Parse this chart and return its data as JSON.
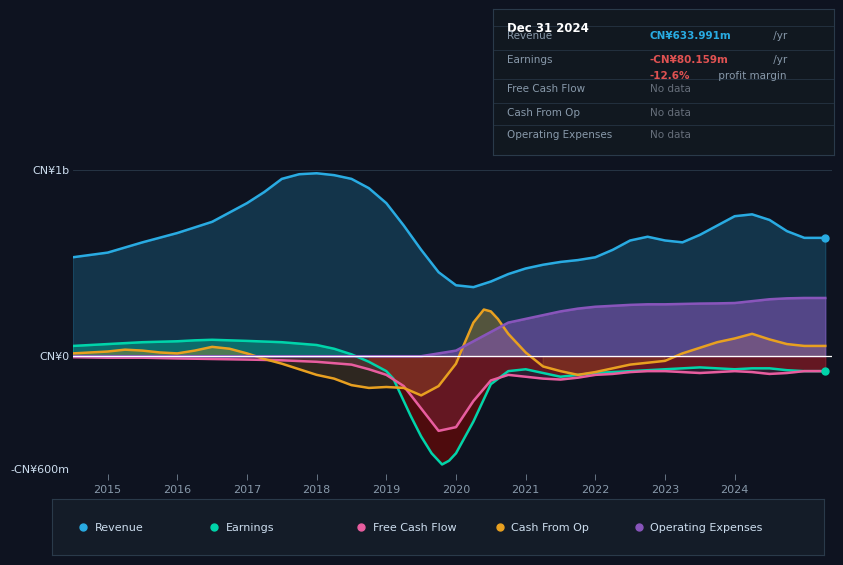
{
  "bg_color": "#0e1320",
  "plot_bg_color": "#0e1320",
  "title_box_bg": "#111927",
  "title_box_border": "#2a3a4a",
  "title_box": {
    "date": "Dec 31 2024",
    "rows": [
      {
        "label": "Revenue",
        "value": "CN¥633.991m",
        "value_suffix": " /yr",
        "value_color": "#29abe2",
        "extra": null
      },
      {
        "label": "Earnings",
        "value": "-CN¥80.159m",
        "value_suffix": " /yr",
        "value_color": "#e05252",
        "extra": "-12.6%",
        "extra_suffix": " profit margin",
        "extra_color": "#e05252"
      },
      {
        "label": "Free Cash Flow",
        "value": "No data",
        "value_color": "#666e7a",
        "extra": null
      },
      {
        "label": "Cash From Op",
        "value": "No data",
        "value_color": "#666e7a",
        "extra": null
      },
      {
        "label": "Operating Expenses",
        "value": "No data",
        "value_color": "#666e7a",
        "extra": null
      }
    ]
  },
  "ylabel_top": "CN¥1b",
  "ylabel_zero": "CN¥0",
  "ylabel_bottom": "-CN¥600m",
  "ylim": [
    -630,
    1050
  ],
  "xlim": [
    2014.5,
    2025.4
  ],
  "xticks": [
    2015,
    2016,
    2017,
    2018,
    2019,
    2020,
    2021,
    2022,
    2023,
    2024
  ],
  "colors": {
    "revenue": "#29abe2",
    "earnings": "#00d4aa",
    "free_cash_flow": "#e85d9f",
    "cash_from_op": "#e8a020",
    "operating_expenses": "#8855bb"
  },
  "revenue": {
    "x": [
      2014.5,
      2015.0,
      2015.5,
      2016.0,
      2016.5,
      2017.0,
      2017.25,
      2017.5,
      2017.75,
      2018.0,
      2018.25,
      2018.5,
      2018.75,
      2019.0,
      2019.25,
      2019.5,
      2019.75,
      2020.0,
      2020.25,
      2020.5,
      2020.75,
      2021.0,
      2021.25,
      2021.5,
      2021.75,
      2022.0,
      2022.25,
      2022.5,
      2022.75,
      2023.0,
      2023.25,
      2023.5,
      2023.75,
      2024.0,
      2024.25,
      2024.5,
      2024.75,
      2025.0,
      2025.3
    ],
    "y": [
      530,
      555,
      610,
      660,
      720,
      820,
      880,
      950,
      975,
      980,
      970,
      950,
      900,
      820,
      700,
      570,
      450,
      380,
      370,
      400,
      440,
      470,
      490,
      505,
      515,
      530,
      570,
      620,
      640,
      620,
      610,
      650,
      700,
      750,
      760,
      730,
      670,
      634,
      634
    ]
  },
  "earnings": {
    "x": [
      2014.5,
      2015.0,
      2015.5,
      2016.0,
      2016.25,
      2016.5,
      2016.75,
      2017.0,
      2017.5,
      2018.0,
      2018.25,
      2018.5,
      2018.75,
      2019.0,
      2019.1,
      2019.2,
      2019.35,
      2019.5,
      2019.65,
      2019.8,
      2019.9,
      2020.0,
      2020.25,
      2020.5,
      2020.75,
      2021.0,
      2021.25,
      2021.5,
      2021.75,
      2022.0,
      2022.25,
      2022.5,
      2022.75,
      2023.0,
      2023.25,
      2023.5,
      2023.75,
      2024.0,
      2024.25,
      2024.5,
      2024.75,
      2025.0,
      2025.3
    ],
    "y": [
      55,
      65,
      75,
      80,
      85,
      88,
      85,
      82,
      75,
      60,
      40,
      10,
      -30,
      -80,
      -120,
      -200,
      -320,
      -430,
      -520,
      -580,
      -560,
      -520,
      -350,
      -150,
      -80,
      -70,
      -90,
      -110,
      -100,
      -90,
      -85,
      -80,
      -75,
      -70,
      -65,
      -60,
      -65,
      -70,
      -65,
      -65,
      -75,
      -80,
      -80
    ]
  },
  "free_cash_flow": {
    "x": [
      2014.5,
      2015.0,
      2015.5,
      2016.0,
      2016.5,
      2017.0,
      2017.5,
      2018.0,
      2018.5,
      2018.75,
      2019.0,
      2019.25,
      2019.5,
      2019.75,
      2020.0,
      2020.25,
      2020.5,
      2020.75,
      2021.0,
      2021.25,
      2021.5,
      2021.75,
      2022.0,
      2022.25,
      2022.5,
      2022.75,
      2023.0,
      2023.25,
      2023.5,
      2023.75,
      2024.0,
      2024.25,
      2024.5,
      2024.75,
      2025.0,
      2025.3
    ],
    "y": [
      -5,
      -8,
      -8,
      -12,
      -15,
      -18,
      -22,
      -30,
      -45,
      -70,
      -100,
      -160,
      -280,
      -400,
      -380,
      -240,
      -130,
      -100,
      -110,
      -120,
      -125,
      -115,
      -100,
      -95,
      -85,
      -80,
      -80,
      -85,
      -90,
      -85,
      -80,
      -85,
      -95,
      -90,
      -80,
      -80
    ]
  },
  "cash_from_op": {
    "x": [
      2014.5,
      2015.0,
      2015.25,
      2015.5,
      2015.75,
      2016.0,
      2016.25,
      2016.5,
      2016.75,
      2017.0,
      2017.25,
      2017.5,
      2017.75,
      2018.0,
      2018.25,
      2018.5,
      2018.75,
      2019.0,
      2019.25,
      2019.5,
      2019.75,
      2020.0,
      2020.1,
      2020.25,
      2020.4,
      2020.5,
      2020.6,
      2020.75,
      2021.0,
      2021.25,
      2021.5,
      2021.75,
      2022.0,
      2022.25,
      2022.5,
      2022.75,
      2023.0,
      2023.25,
      2023.5,
      2023.75,
      2024.0,
      2024.25,
      2024.5,
      2024.75,
      2025.0,
      2025.3
    ],
    "y": [
      15,
      25,
      35,
      30,
      20,
      15,
      30,
      50,
      40,
      15,
      -15,
      -40,
      -70,
      -100,
      -120,
      -155,
      -170,
      -165,
      -170,
      -210,
      -160,
      -40,
      50,
      180,
      250,
      240,
      200,
      120,
      20,
      -55,
      -80,
      -100,
      -85,
      -65,
      -45,
      -35,
      -25,
      15,
      45,
      75,
      95,
      120,
      90,
      65,
      55,
      55
    ]
  },
  "operating_expenses": {
    "x": [
      2014.5,
      2015.0,
      2015.5,
      2016.0,
      2016.5,
      2017.0,
      2017.5,
      2018.0,
      2018.5,
      2019.0,
      2019.5,
      2020.0,
      2020.25,
      2020.5,
      2020.75,
      2021.0,
      2021.25,
      2021.5,
      2021.75,
      2022.0,
      2022.25,
      2022.5,
      2022.75,
      2023.0,
      2023.25,
      2023.5,
      2023.75,
      2024.0,
      2024.25,
      2024.5,
      2024.75,
      2025.0,
      2025.3
    ],
    "y": [
      0,
      0,
      0,
      0,
      0,
      0,
      0,
      0,
      0,
      0,
      0,
      30,
      80,
      130,
      180,
      200,
      220,
      240,
      255,
      265,
      270,
      275,
      278,
      278,
      280,
      282,
      283,
      285,
      295,
      305,
      310,
      312,
      312
    ]
  },
  "legend": [
    {
      "label": "Revenue",
      "color": "#29abe2"
    },
    {
      "label": "Earnings",
      "color": "#00d4aa"
    },
    {
      "label": "Free Cash Flow",
      "color": "#e85d9f"
    },
    {
      "label": "Cash From Op",
      "color": "#e8a020"
    },
    {
      "label": "Operating Expenses",
      "color": "#8855bb"
    }
  ]
}
